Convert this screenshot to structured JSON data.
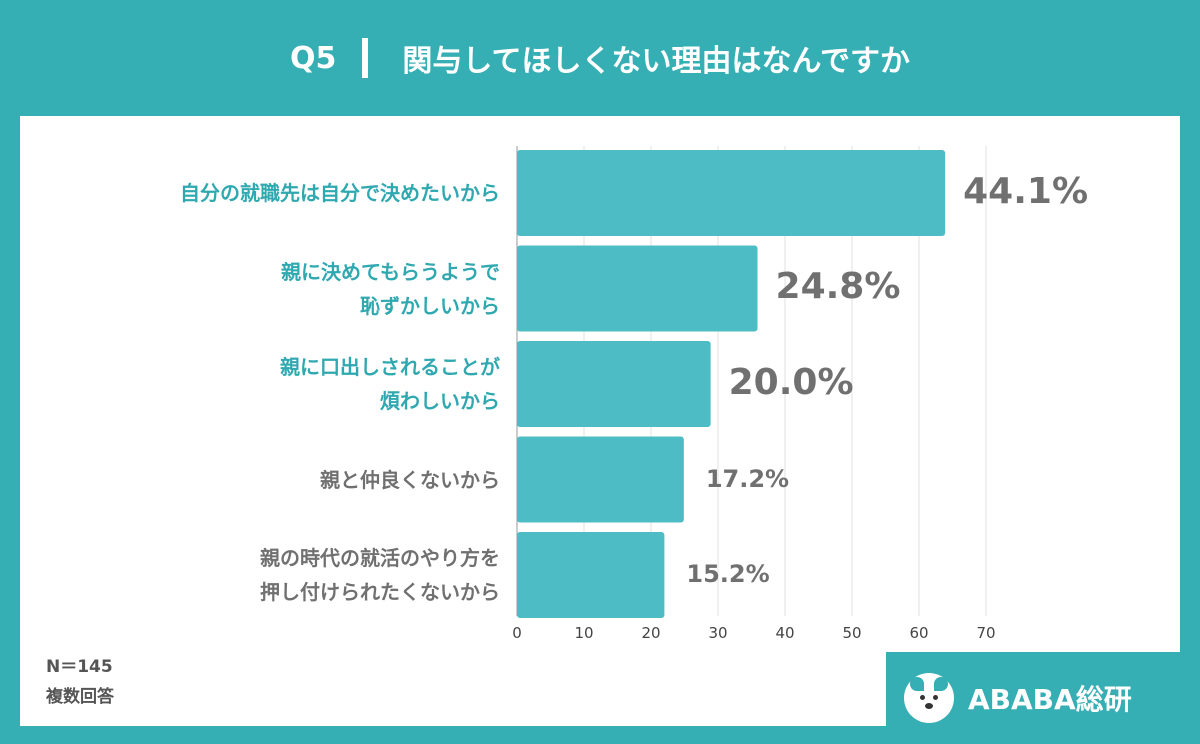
{
  "header": {
    "q_label": "Q5",
    "title": "関与してほしくない理由はなんですか"
  },
  "colors": {
    "accent": "#35aeb4",
    "bar": "#4dbcc5",
    "highlight_text": "#2fa8b0",
    "normal_text": "#707070"
  },
  "chart_data": {
    "type": "bar",
    "orientation": "horizontal",
    "categories": [
      [
        "自分の就職先は自分で決めたいから"
      ],
      [
        "親に決めてもらうようで",
        "恥ずかしいから"
      ],
      [
        "親に口出しされることが",
        "煩わしいから"
      ],
      [
        "親と仲良くないから"
      ],
      [
        "親の時代の就活のやり方を",
        "押し付けられたくないから"
      ]
    ],
    "values": [
      63.9,
      35.9,
      28.9,
      24.9,
      22.0
    ],
    "value_labels": [
      "44.1%",
      "24.8%",
      "20.0%",
      "17.2%",
      "15.2%"
    ],
    "highlight": [
      true,
      true,
      true,
      false,
      false
    ],
    "xlim": [
      0,
      70
    ],
    "xticks": [
      "0",
      "10",
      "20",
      "30",
      "40",
      "50",
      "60",
      "70"
    ],
    "grid": "vertical"
  },
  "notes": {
    "n": "N＝145",
    "multi": "複数回答"
  },
  "logo": {
    "text": "ABABA総研",
    "icon": "dog-mascot-icon"
  }
}
